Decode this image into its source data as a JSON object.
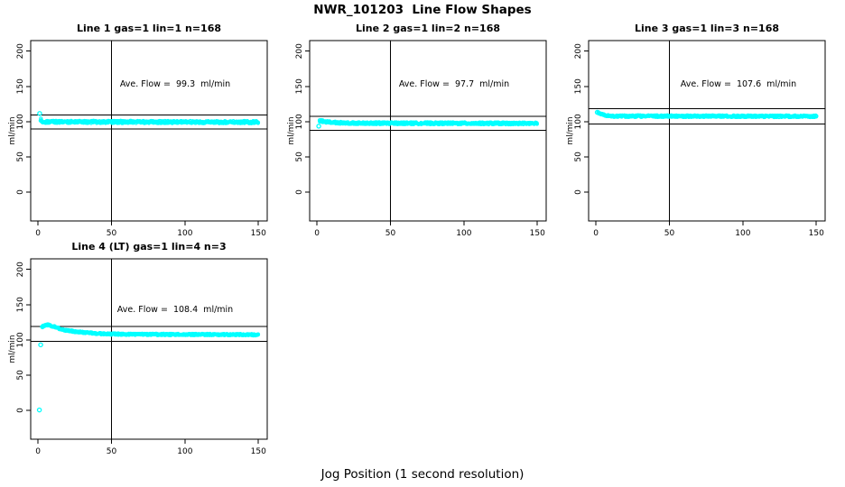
{
  "title": "NWR_101203  Line Flow Shapes",
  "xlabel": "Jog Position (1 second resolution)",
  "chart_data": {
    "type": "scatter",
    "point_color": "#00FFFF",
    "line_color": "#000000",
    "grid": false,
    "x_ticks": [
      0,
      50,
      100,
      150
    ],
    "y_ticks": [
      0,
      50,
      100,
      150,
      200
    ],
    "xlim": [
      -5,
      156
    ],
    "ylim": [
      -41,
      215
    ],
    "panels": [
      {
        "title": "Line 1 gas=1 lin=1 n=168",
        "ylabel": "ml/min",
        "annotation": "Ave. Flow =  99.3  ml/min",
        "ave_flow": 99.3,
        "n": 168,
        "ref_h": [
          109.2,
          89.4
        ],
        "ref_v": 50,
        "singles": [
          [
            1.1,
            111.5
          ]
        ],
        "profile": [
          [
            1.8,
            103
          ],
          [
            2.5,
            100.5
          ],
          [
            4,
            99.6
          ],
          [
            150,
            99.3
          ]
        ],
        "noise": 1.7,
        "seed": 7
      },
      {
        "title": "Line 2 gas=1 lin=2 n=168",
        "ylabel": "ml/min",
        "annotation": "Ave. Flow =  97.7  ml/min",
        "ave_flow": 97.7,
        "n": 168,
        "ref_h": [
          107.5,
          87.9
        ],
        "ref_v": 50,
        "singles": [
          [
            1.2,
            93.5
          ]
        ],
        "profile": [
          [
            1.9,
            100.6
          ],
          [
            3,
            100.9
          ],
          [
            8,
            99.2
          ],
          [
            20,
            97.9
          ],
          [
            150,
            97.4
          ]
        ],
        "noise": 1.5,
        "seed": 11
      },
      {
        "title": "Line 3 gas=1 lin=3 n=168",
        "ylabel": "ml/min",
        "annotation": "Ave. Flow =  107.6  ml/min",
        "ave_flow": 107.6,
        "n": 168,
        "ref_h": [
          118.4,
          96.8
        ],
        "ref_v": 50,
        "singles": [
          [
            0.9,
            113.2
          ]
        ],
        "profile": [
          [
            1.5,
            112.5
          ],
          [
            3,
            110.8
          ],
          [
            5,
            109.3
          ],
          [
            8,
            108.2
          ],
          [
            12,
            107.8
          ],
          [
            150,
            107.5
          ]
        ],
        "noise": 1.3,
        "seed": 13
      },
      {
        "title": "Line 4 (LT) gas=1 lin=4 n=3",
        "ylabel": "ml/min",
        "annotation": "Ave. Flow =  108.4  ml/min",
        "ave_flow": 108.4,
        "n": 3,
        "ref_h": [
          119.2,
          97.6
        ],
        "ref_v": 50,
        "singles": [
          [
            0.9,
            0.5
          ],
          [
            1.8,
            93
          ]
        ],
        "profile": [
          [
            2.8,
            118.5
          ],
          [
            4,
            120.5
          ],
          [
            6,
            121.3
          ],
          [
            8,
            120.8
          ],
          [
            10,
            119.3
          ],
          [
            13,
            117
          ],
          [
            16,
            115
          ],
          [
            20,
            113.2
          ],
          [
            25,
            111.8
          ],
          [
            30,
            110.7
          ],
          [
            36,
            109.6
          ],
          [
            45,
            108.6
          ],
          [
            60,
            107.9
          ],
          [
            90,
            107.7
          ],
          [
            120,
            107.6
          ],
          [
            150,
            107.2
          ]
        ],
        "noise": 1.15,
        "seed": 17
      }
    ]
  }
}
